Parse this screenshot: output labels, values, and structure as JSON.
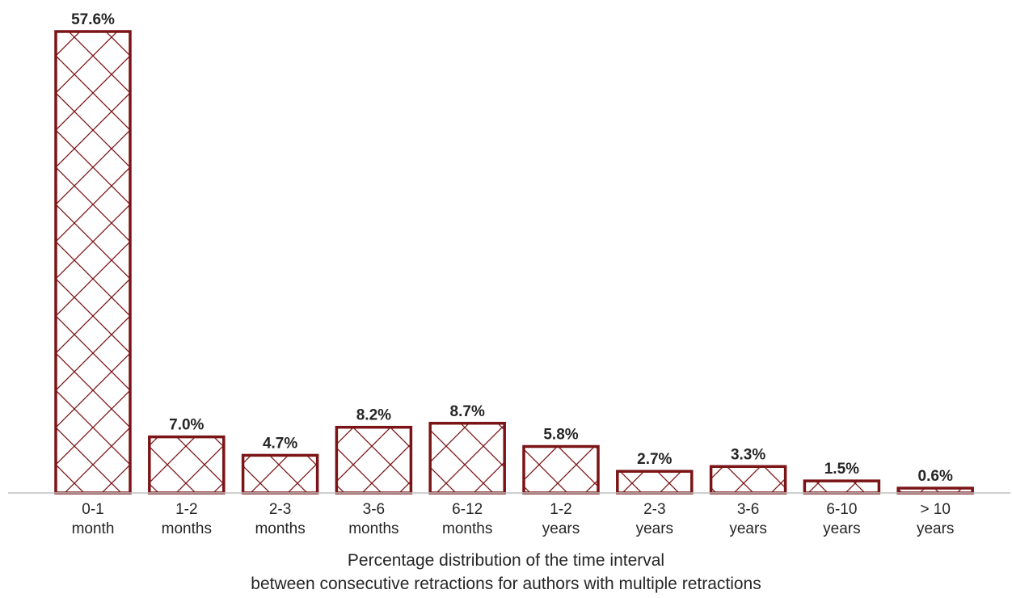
{
  "chart_data": {
    "type": "bar",
    "categories": [
      [
        "0-1",
        "month"
      ],
      [
        "1-2",
        "months"
      ],
      [
        "2-3",
        "months"
      ],
      [
        "3-6",
        "months"
      ],
      [
        "6-12",
        "months"
      ],
      [
        "1-2",
        "years"
      ],
      [
        "2-3",
        "years"
      ],
      [
        "3-6",
        "years"
      ],
      [
        "6-10",
        "years"
      ],
      [
        "> 10",
        "years"
      ]
    ],
    "values": [
      57.6,
      7.0,
      4.7,
      8.2,
      8.7,
      5.8,
      2.7,
      3.3,
      1.5,
      0.6
    ],
    "data_labels": [
      "57.6%",
      "7.0%",
      "4.7%",
      "8.2%",
      "8.7%",
      "5.8%",
      "2.7%",
      "3.3%",
      "1.5%",
      "0.6%"
    ],
    "title": "",
    "xlabel": [
      "Percentage distribution of the time interval",
      "between consecutive retractions for authors with multiple retractions"
    ],
    "ylabel": "",
    "ylim": [
      0,
      57.6
    ],
    "grid": false,
    "legend": "none",
    "colors": {
      "bar_edge": "#7b1416",
      "hatch": "#7b1416",
      "axis": "#bfbfbf",
      "text": "#262626"
    }
  }
}
